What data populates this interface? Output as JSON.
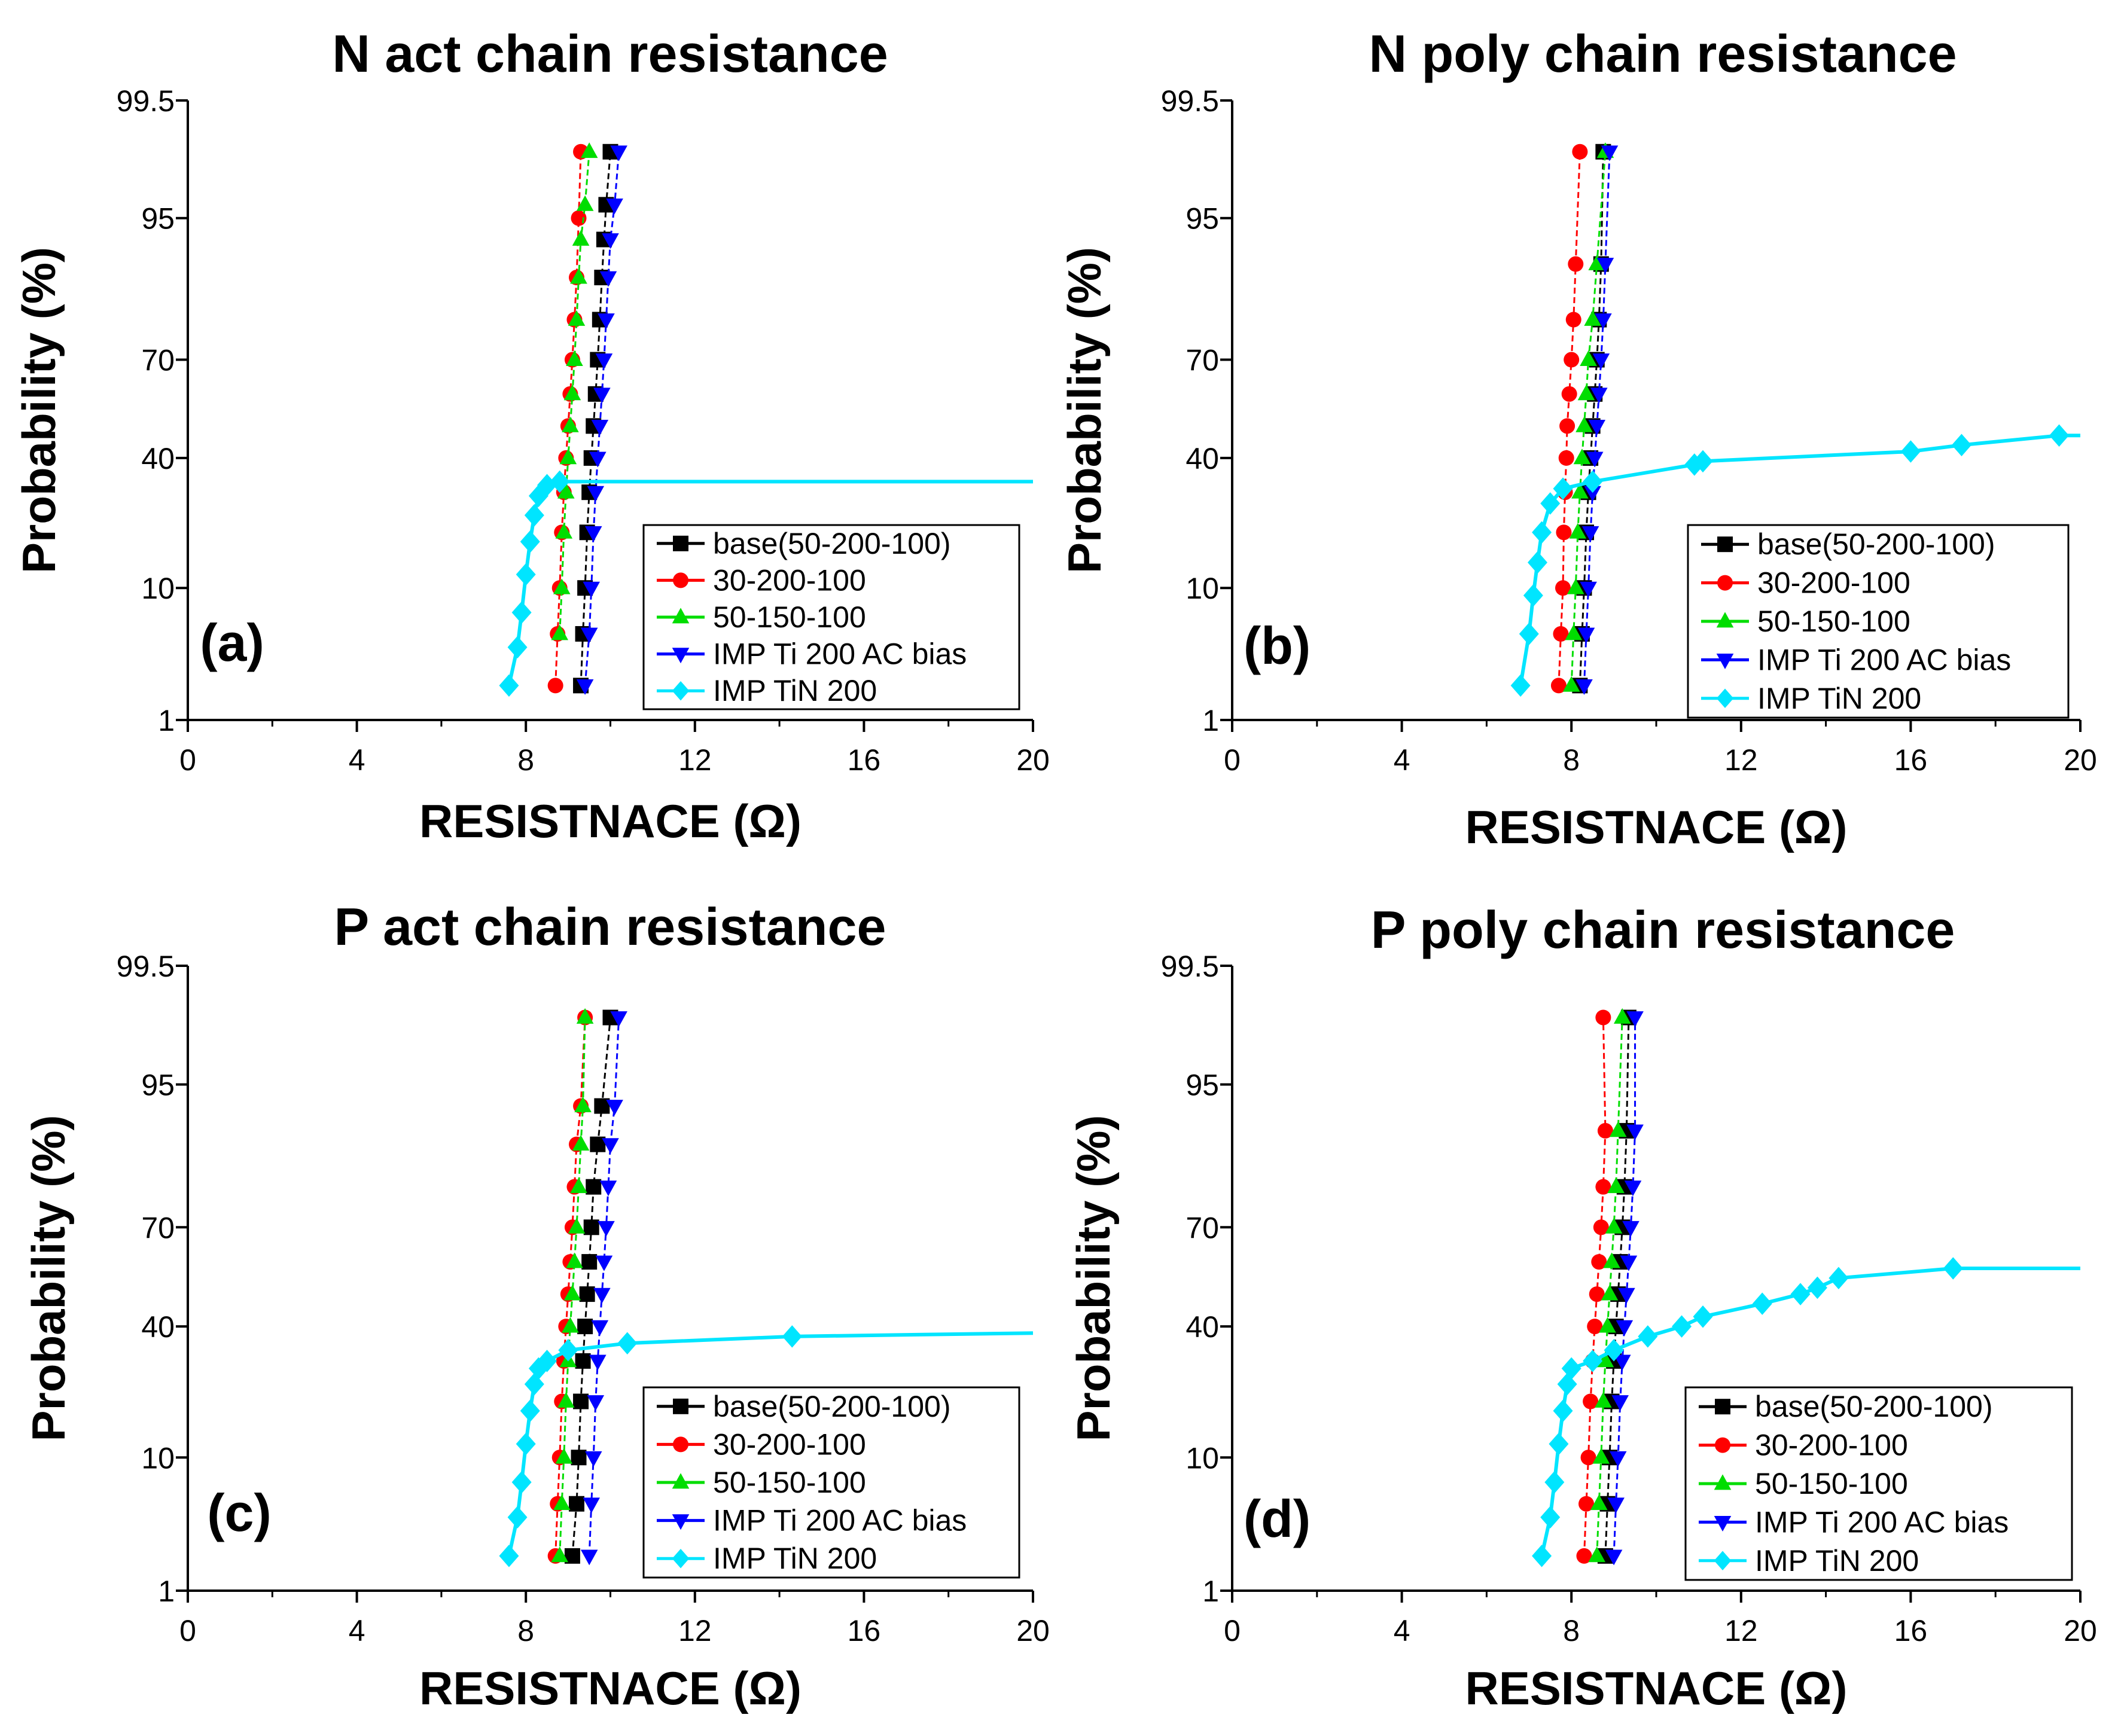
{
  "figure": "Probability plots of chain resistance",
  "chart_data": [
    {
      "type": "line",
      "panel_label": "(a)",
      "title": "N act chain resistance",
      "xlabel": "RESISTNACE (Ω)",
      "ylabel": "Probability (%)",
      "xlim": [
        0,
        20
      ],
      "x_ticks": [
        "0",
        "4",
        "8",
        "12",
        "16",
        "20"
      ],
      "y_ticks": [
        "1",
        "10",
        "40",
        "70",
        "95",
        "99.5"
      ],
      "legend_position": "bottom-right",
      "series": [
        {
          "name": "base(50-200-100)",
          "color": "#000000",
          "marker": "square",
          "x": [
            9.3,
            9.35,
            9.4,
            9.45,
            9.5,
            9.55,
            9.6,
            9.65,
            9.7,
            9.75,
            9.8,
            9.85,
            9.9,
            10.0
          ],
          "y": [
            2,
            5,
            10,
            20,
            30,
            40,
            50,
            60,
            70,
            80,
            88,
            93,
            96,
            98.5
          ]
        },
        {
          "name": "30-200-100",
          "color": "#ff0000",
          "marker": "circle",
          "x": [
            8.7,
            8.75,
            8.8,
            8.85,
            8.9,
            8.95,
            9.0,
            9.05,
            9.1,
            9.15,
            9.2,
            9.25,
            9.3
          ],
          "y": [
            2,
            5,
            10,
            20,
            30,
            40,
            50,
            60,
            70,
            80,
            88,
            95,
            98.5
          ]
        },
        {
          "name": "50-150-100",
          "color": "#00dd00",
          "marker": "triangle-up",
          "x": [
            8.8,
            8.85,
            8.9,
            8.95,
            9.0,
            9.05,
            9.1,
            9.15,
            9.2,
            9.25,
            9.3,
            9.4,
            9.5
          ],
          "y": [
            5,
            10,
            20,
            30,
            40,
            50,
            60,
            70,
            80,
            88,
            93,
            96,
            98.5
          ]
        },
        {
          "name": "IMP Ti 200 AC bias",
          "color": "#0000ff",
          "marker": "triangle-down",
          "x": [
            9.4,
            9.5,
            9.55,
            9.6,
            9.65,
            9.7,
            9.75,
            9.8,
            9.85,
            9.9,
            9.95,
            10.0,
            10.1,
            10.2
          ],
          "y": [
            2,
            5,
            10,
            20,
            30,
            40,
            50,
            60,
            70,
            80,
            88,
            93,
            96,
            98.5
          ]
        },
        {
          "name": "IMP TiN 200",
          "color": "#00e5ff",
          "marker": "diamond",
          "x": [
            7.6,
            7.8,
            7.9,
            8.0,
            8.1,
            8.2,
            8.3,
            8.5,
            8.8,
            20.0
          ],
          "y": [
            2,
            4,
            7,
            12,
            18,
            24,
            29,
            32,
            33,
            33
          ]
        }
      ]
    },
    {
      "type": "line",
      "panel_label": "(b)",
      "title": "N poly chain resistance",
      "xlabel": "RESISTNACE (Ω)",
      "ylabel": "Probability (%)",
      "xlim": [
        0,
        20
      ],
      "x_ticks": [
        "0",
        "4",
        "8",
        "12",
        "16",
        "20"
      ],
      "y_ticks": [
        "1",
        "10",
        "40",
        "70",
        "95",
        "99.5"
      ],
      "legend_position": "bottom-right",
      "series": [
        {
          "name": "base(50-200-100)",
          "color": "#000000",
          "marker": "square",
          "x": [
            8.2,
            8.25,
            8.3,
            8.35,
            8.4,
            8.45,
            8.5,
            8.55,
            8.6,
            8.65,
            8.7,
            8.75
          ],
          "y": [
            2,
            5,
            10,
            20,
            30,
            40,
            50,
            60,
            70,
            80,
            90,
            98.5
          ]
        },
        {
          "name": "30-200-100",
          "color": "#ff0000",
          "marker": "circle",
          "x": [
            7.7,
            7.75,
            7.8,
            7.82,
            7.85,
            7.88,
            7.9,
            7.95,
            8.0,
            8.05,
            8.1,
            8.2
          ],
          "y": [
            2,
            5,
            10,
            20,
            30,
            40,
            50,
            60,
            70,
            80,
            90,
            98.5
          ]
        },
        {
          "name": "50-150-100",
          "color": "#00dd00",
          "marker": "triangle-up",
          "x": [
            8.0,
            8.05,
            8.1,
            8.15,
            8.2,
            8.25,
            8.3,
            8.35,
            8.4,
            8.5,
            8.6,
            8.8
          ],
          "y": [
            2,
            5,
            10,
            20,
            30,
            40,
            50,
            60,
            70,
            80,
            90,
            98.5
          ]
        },
        {
          "name": "IMP Ti 200 AC bias",
          "color": "#0000ff",
          "marker": "triangle-down",
          "x": [
            8.3,
            8.35,
            8.4,
            8.45,
            8.5,
            8.55,
            8.6,
            8.65,
            8.7,
            8.75,
            8.8,
            8.9
          ],
          "y": [
            2,
            5,
            10,
            20,
            30,
            40,
            50,
            60,
            70,
            80,
            90,
            98.5
          ]
        },
        {
          "name": "IMP TiN 200",
          "color": "#00e5ff",
          "marker": "diamond",
          "x": [
            6.8,
            7.0,
            7.1,
            7.2,
            7.3,
            7.5,
            7.8,
            8.5,
            10.9,
            11.1,
            16.0,
            17.2,
            19.5,
            20.0
          ],
          "y": [
            2,
            5,
            9,
            14,
            20,
            27,
            31,
            33,
            38,
            39,
            42,
            44,
            47,
            47
          ]
        }
      ]
    },
    {
      "type": "line",
      "panel_label": "(c)",
      "title": "P act chain resistance",
      "xlabel": "RESISTNACE (Ω)",
      "ylabel": "Probability (%)",
      "xlim": [
        0,
        20
      ],
      "x_ticks": [
        "0",
        "4",
        "8",
        "12",
        "16",
        "20"
      ],
      "y_ticks": [
        "1",
        "10",
        "40",
        "70",
        "95",
        "99.5"
      ],
      "legend_position": "bottom-right",
      "series": [
        {
          "name": "base(50-200-100)",
          "color": "#000000",
          "marker": "square",
          "x": [
            9.1,
            9.2,
            9.25,
            9.3,
            9.35,
            9.4,
            9.45,
            9.5,
            9.55,
            9.6,
            9.7,
            9.8,
            10.0
          ],
          "y": [
            2,
            5,
            10,
            20,
            30,
            40,
            50,
            60,
            70,
            80,
            88,
            93,
            98.5
          ]
        },
        {
          "name": "30-200-100",
          "color": "#ff0000",
          "marker": "circle",
          "x": [
            8.7,
            8.75,
            8.8,
            8.85,
            8.9,
            8.95,
            9.0,
            9.05,
            9.1,
            9.15,
            9.2,
            9.3,
            9.4
          ],
          "y": [
            2,
            5,
            10,
            20,
            30,
            40,
            50,
            60,
            70,
            80,
            88,
            93,
            98.5
          ]
        },
        {
          "name": "50-150-100",
          "color": "#00dd00",
          "marker": "triangle-up",
          "x": [
            8.8,
            8.85,
            8.9,
            8.95,
            9.0,
            9.05,
            9.1,
            9.15,
            9.2,
            9.25,
            9.3,
            9.35,
            9.4
          ],
          "y": [
            2,
            5,
            10,
            20,
            30,
            40,
            50,
            60,
            70,
            80,
            88,
            93,
            98.5
          ]
        },
        {
          "name": "IMP Ti 200 AC bias",
          "color": "#0000ff",
          "marker": "triangle-down",
          "x": [
            9.5,
            9.55,
            9.6,
            9.65,
            9.7,
            9.75,
            9.8,
            9.85,
            9.9,
            9.95,
            10.0,
            10.1,
            10.2
          ],
          "y": [
            2,
            5,
            10,
            20,
            30,
            40,
            50,
            60,
            70,
            80,
            88,
            93,
            98.5
          ]
        },
        {
          "name": "IMP TiN 200",
          "color": "#00e5ff",
          "marker": "diamond",
          "x": [
            7.6,
            7.8,
            7.9,
            8.0,
            8.1,
            8.2,
            8.3,
            8.5,
            9.0,
            10.4,
            14.3,
            20.0
          ],
          "y": [
            2,
            4,
            7,
            12,
            18,
            24,
            28,
            30,
            33,
            35,
            37,
            38
          ]
        }
      ]
    },
    {
      "type": "line",
      "panel_label": "(d)",
      "title": "P poly chain resistance",
      "xlabel": "RESISTNACE (Ω)",
      "ylabel": "Probability (%)",
      "xlim": [
        0,
        20
      ],
      "x_ticks": [
        "0",
        "4",
        "8",
        "12",
        "16",
        "20"
      ],
      "y_ticks": [
        "1",
        "10",
        "40",
        "70",
        "95",
        "99.5"
      ],
      "legend_position": "bottom-right",
      "series": [
        {
          "name": "base(50-200-100)",
          "color": "#000000",
          "marker": "square",
          "x": [
            8.8,
            8.85,
            8.9,
            8.95,
            9.0,
            9.05,
            9.1,
            9.15,
            9.2,
            9.25,
            9.3,
            9.35
          ],
          "y": [
            2,
            5,
            10,
            20,
            30,
            40,
            50,
            60,
            70,
            80,
            90,
            98.5
          ]
        },
        {
          "name": "30-200-100",
          "color": "#ff0000",
          "marker": "circle",
          "x": [
            8.3,
            8.35,
            8.4,
            8.45,
            8.5,
            8.55,
            8.6,
            8.65,
            8.7,
            8.75,
            8.8,
            8.75
          ],
          "y": [
            2,
            5,
            10,
            20,
            30,
            40,
            50,
            60,
            70,
            80,
            90,
            98.5
          ]
        },
        {
          "name": "50-150-100",
          "color": "#00dd00",
          "marker": "triangle-up",
          "x": [
            8.6,
            8.65,
            8.7,
            8.75,
            8.8,
            8.85,
            8.9,
            8.95,
            9.0,
            9.05,
            9.1,
            9.2
          ],
          "y": [
            2,
            5,
            10,
            20,
            30,
            40,
            50,
            60,
            70,
            80,
            90,
            98.5
          ]
        },
        {
          "name": "IMP Ti 200 AC bias",
          "color": "#0000ff",
          "marker": "triangle-down",
          "x": [
            9.0,
            9.05,
            9.1,
            9.15,
            9.2,
            9.25,
            9.3,
            9.35,
            9.4,
            9.45,
            9.5,
            9.5
          ],
          "y": [
            2,
            5,
            10,
            20,
            30,
            40,
            50,
            60,
            70,
            80,
            90,
            98.5
          ]
        },
        {
          "name": "IMP TiN 200",
          "color": "#00e5ff",
          "marker": "diamond",
          "x": [
            7.3,
            7.5,
            7.6,
            7.7,
            7.8,
            7.9,
            8.0,
            8.5,
            9.0,
            9.8,
            10.6,
            11.1,
            12.5,
            13.4,
            13.8,
            14.3,
            17.0,
            20.0
          ],
          "y": [
            2,
            4,
            7,
            12,
            18,
            24,
            28,
            30,
            33,
            37,
            40,
            43,
            47,
            50,
            52,
            55,
            58,
            58
          ]
        }
      ]
    }
  ]
}
